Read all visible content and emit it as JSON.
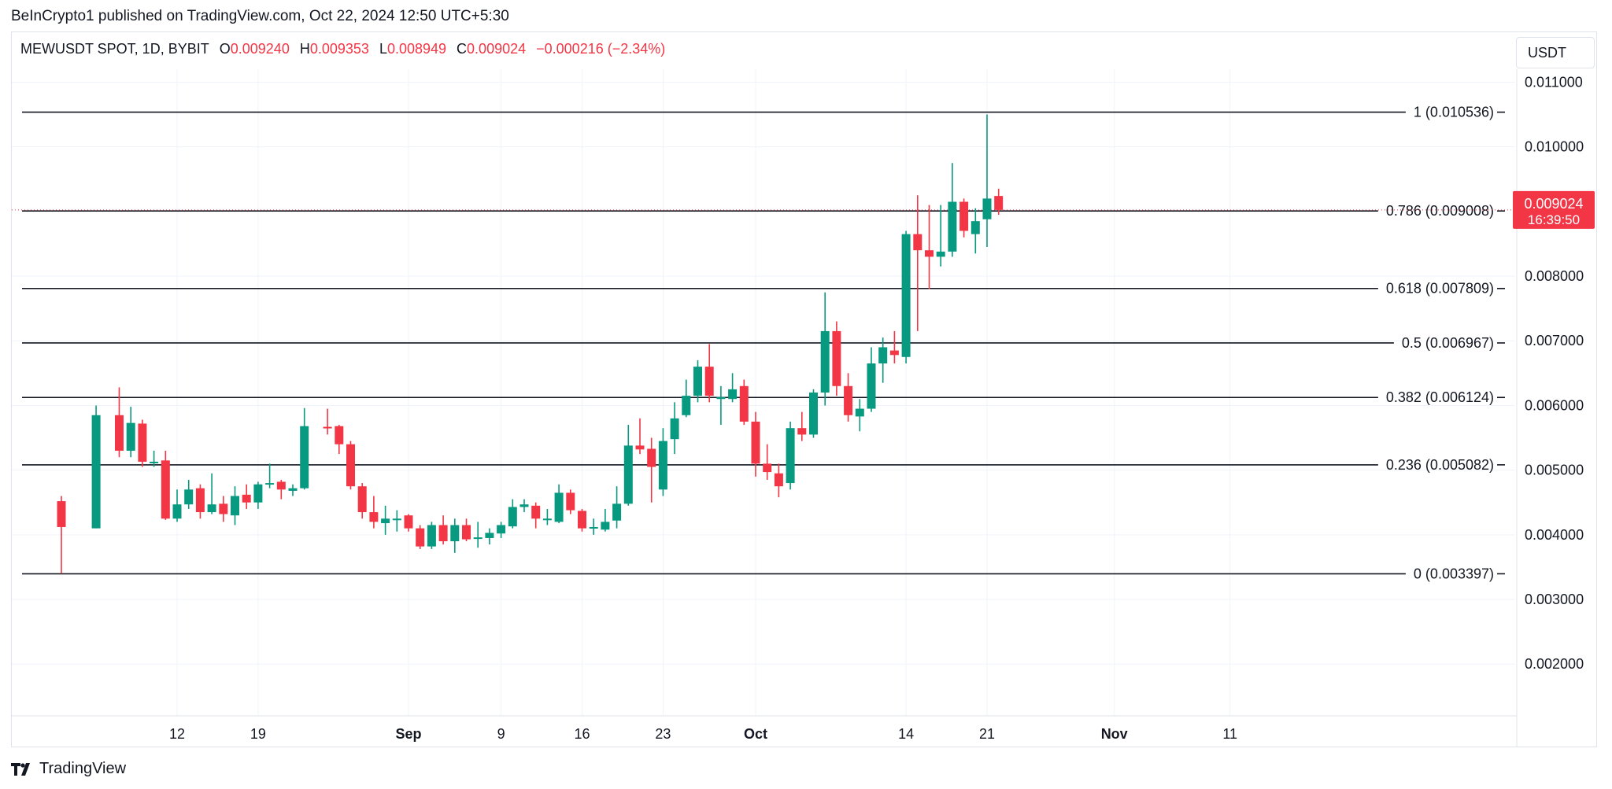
{
  "publisher": "BeInCrypto1 published on TradingView.com, Oct 22, 2024 12:50 UTC+5:30",
  "legend": {
    "symbol": "MEWUSDT SPOT, 1D, BYBIT",
    "o_label": "O",
    "o": "0.009240",
    "h_label": "H",
    "h": "0.009353",
    "l_label": "L",
    "l": "0.008949",
    "c_label": "C",
    "c": "0.009024",
    "change": "−0.000216 (−2.34%)"
  },
  "unit_button": "USDT",
  "brand": "TradingView",
  "colors": {
    "up": "#089981",
    "down": "#f23645",
    "grid": "#f0f3fa",
    "fib_line": "#131722"
  },
  "chart_data": {
    "type": "candlestick",
    "ylim": [
      0.0012,
      0.0112
    ],
    "y_ticks": [
      "0.002000",
      "0.003000",
      "0.004000",
      "0.005000",
      "0.006000",
      "0.007000",
      "0.008000",
      "0.010000",
      "0.011000"
    ],
    "x_ticks": [
      {
        "label": "12",
        "x": "2024-08-12"
      },
      {
        "label": "19",
        "x": "2024-08-19"
      },
      {
        "label": "Sep",
        "x": "2024-09-01"
      },
      {
        "label": "9",
        "x": "2024-09-09"
      },
      {
        "label": "16",
        "x": "2024-09-16"
      },
      {
        "label": "23",
        "x": "2024-09-23"
      },
      {
        "label": "Oct",
        "x": "2024-10-01"
      },
      {
        "label": "14",
        "x": "2024-10-14"
      },
      {
        "label": "21",
        "x": "2024-10-21"
      },
      {
        "label": "Nov",
        "x": "2024-11-01"
      },
      {
        "label": "11",
        "x": "2024-11-11"
      }
    ],
    "fib_levels": [
      {
        "label": "1 (0.010536)",
        "value": 0.010536
      },
      {
        "label": "0.786 (0.009008)",
        "value": 0.009008
      },
      {
        "label": "0.618 (0.007809)",
        "value": 0.007809
      },
      {
        "label": "0.5 (0.006967)",
        "value": 0.006967
      },
      {
        "label": "0.382 (0.006124)",
        "value": 0.006124
      },
      {
        "label": "0.236 (0.005082)",
        "value": 0.005082
      },
      {
        "label": "0 (0.003397)",
        "value": 0.003397
      }
    ],
    "current_price": {
      "value": 0.009024,
      "label": "0.009024",
      "countdown": "16:39:50"
    },
    "candles": [
      {
        "date": "2024-08-02",
        "o": 0.00452,
        "h": 0.0046,
        "l": 0.0034,
        "c": 0.00412
      },
      {
        "date": "2024-08-05",
        "o": 0.0041,
        "h": 0.006,
        "l": 0.0041,
        "c": 0.00585
      },
      {
        "date": "2024-08-07",
        "o": 0.00585,
        "h": 0.00628,
        "l": 0.0052,
        "c": 0.0053
      },
      {
        "date": "2024-08-08",
        "o": 0.0053,
        "h": 0.00598,
        "l": 0.0052,
        "c": 0.00573
      },
      {
        "date": "2024-08-09",
        "o": 0.00572,
        "h": 0.00578,
        "l": 0.00505,
        "c": 0.00513
      },
      {
        "date": "2024-08-10",
        "o": 0.00513,
        "h": 0.0053,
        "l": 0.00505,
        "c": 0.00513
      },
      {
        "date": "2024-08-11",
        "o": 0.00515,
        "h": 0.0053,
        "l": 0.00423,
        "c": 0.00425
      },
      {
        "date": "2024-08-12",
        "o": 0.00425,
        "h": 0.0047,
        "l": 0.0042,
        "c": 0.00447
      },
      {
        "date": "2024-08-13",
        "o": 0.00447,
        "h": 0.00485,
        "l": 0.0044,
        "c": 0.0047
      },
      {
        "date": "2024-08-14",
        "o": 0.00472,
        "h": 0.00478,
        "l": 0.00425,
        "c": 0.00435
      },
      {
        "date": "2024-08-15",
        "o": 0.00435,
        "h": 0.00495,
        "l": 0.00432,
        "c": 0.00447
      },
      {
        "date": "2024-08-16",
        "o": 0.00448,
        "h": 0.0046,
        "l": 0.0042,
        "c": 0.00432
      },
      {
        "date": "2024-08-17",
        "o": 0.0043,
        "h": 0.00475,
        "l": 0.00415,
        "c": 0.0046
      },
      {
        "date": "2024-08-18",
        "o": 0.00462,
        "h": 0.00478,
        "l": 0.0044,
        "c": 0.0045
      },
      {
        "date": "2024-08-19",
        "o": 0.0045,
        "h": 0.00482,
        "l": 0.0044,
        "c": 0.00478
      },
      {
        "date": "2024-08-20",
        "o": 0.00478,
        "h": 0.0051,
        "l": 0.00472,
        "c": 0.0048
      },
      {
        "date": "2024-08-21",
        "o": 0.00482,
        "h": 0.00485,
        "l": 0.00455,
        "c": 0.0047
      },
      {
        "date": "2024-08-22",
        "o": 0.00468,
        "h": 0.00478,
        "l": 0.0046,
        "c": 0.00472
      },
      {
        "date": "2024-08-23",
        "o": 0.00472,
        "h": 0.00596,
        "l": 0.0047,
        "c": 0.00568
      },
      {
        "date": "2024-08-25",
        "o": 0.00567,
        "h": 0.00595,
        "l": 0.00555,
        "c": 0.00565
      },
      {
        "date": "2024-08-26",
        "o": 0.00568,
        "h": 0.0057,
        "l": 0.00525,
        "c": 0.0054
      },
      {
        "date": "2024-08-27",
        "o": 0.0054,
        "h": 0.00545,
        "l": 0.0047,
        "c": 0.00475
      },
      {
        "date": "2024-08-28",
        "o": 0.00475,
        "h": 0.0048,
        "l": 0.00425,
        "c": 0.00435
      },
      {
        "date": "2024-08-29",
        "o": 0.00435,
        "h": 0.0046,
        "l": 0.0041,
        "c": 0.0042
      },
      {
        "date": "2024-08-30",
        "o": 0.00418,
        "h": 0.00445,
        "l": 0.004,
        "c": 0.00425
      },
      {
        "date": "2024-08-31",
        "o": 0.00423,
        "h": 0.00438,
        "l": 0.00405,
        "c": 0.00425
      },
      {
        "date": "2024-09-01",
        "o": 0.0043,
        "h": 0.00432,
        "l": 0.00405,
        "c": 0.0041
      },
      {
        "date": "2024-09-02",
        "o": 0.0041,
        "h": 0.00415,
        "l": 0.00378,
        "c": 0.00382
      },
      {
        "date": "2024-09-03",
        "o": 0.00382,
        "h": 0.0042,
        "l": 0.00378,
        "c": 0.00415
      },
      {
        "date": "2024-09-04",
        "o": 0.00415,
        "h": 0.0043,
        "l": 0.00385,
        "c": 0.0039
      },
      {
        "date": "2024-09-05",
        "o": 0.0039,
        "h": 0.00425,
        "l": 0.00372,
        "c": 0.00415
      },
      {
        "date": "2024-09-06",
        "o": 0.00415,
        "h": 0.00425,
        "l": 0.0039,
        "c": 0.00393
      },
      {
        "date": "2024-09-07",
        "o": 0.00396,
        "h": 0.0042,
        "l": 0.0038,
        "c": 0.00396
      },
      {
        "date": "2024-09-08",
        "o": 0.00395,
        "h": 0.0041,
        "l": 0.00385,
        "c": 0.00403
      },
      {
        "date": "2024-09-09",
        "o": 0.00402,
        "h": 0.0042,
        "l": 0.00395,
        "c": 0.00415
      },
      {
        "date": "2024-09-10",
        "o": 0.00413,
        "h": 0.00455,
        "l": 0.0041,
        "c": 0.00443
      },
      {
        "date": "2024-09-11",
        "o": 0.00443,
        "h": 0.00455,
        "l": 0.00435,
        "c": 0.00447
      },
      {
        "date": "2024-09-12",
        "o": 0.00445,
        "h": 0.0045,
        "l": 0.0041,
        "c": 0.00425
      },
      {
        "date": "2024-09-13",
        "o": 0.00425,
        "h": 0.0044,
        "l": 0.00415,
        "c": 0.00425
      },
      {
        "date": "2024-09-14",
        "o": 0.0042,
        "h": 0.00478,
        "l": 0.00418,
        "c": 0.00465
      },
      {
        "date": "2024-09-15",
        "o": 0.00465,
        "h": 0.0047,
        "l": 0.00432,
        "c": 0.00438
      },
      {
        "date": "2024-09-16",
        "o": 0.00437,
        "h": 0.0044,
        "l": 0.00405,
        "c": 0.0041
      },
      {
        "date": "2024-09-17",
        "o": 0.0041,
        "h": 0.00425,
        "l": 0.004,
        "c": 0.00412
      },
      {
        "date": "2024-09-18",
        "o": 0.00408,
        "h": 0.0044,
        "l": 0.00405,
        "c": 0.0042
      },
      {
        "date": "2024-09-19",
        "o": 0.00422,
        "h": 0.00475,
        "l": 0.0041,
        "c": 0.00448
      },
      {
        "date": "2024-09-20",
        "o": 0.00448,
        "h": 0.0057,
        "l": 0.00445,
        "c": 0.00538
      },
      {
        "date": "2024-09-21",
        "o": 0.00538,
        "h": 0.0058,
        "l": 0.00525,
        "c": 0.00532
      },
      {
        "date": "2024-09-22",
        "o": 0.00533,
        "h": 0.0055,
        "l": 0.0045,
        "c": 0.00505
      },
      {
        "date": "2024-09-23",
        "o": 0.0047,
        "h": 0.00565,
        "l": 0.0046,
        "c": 0.00545
      },
      {
        "date": "2024-09-24",
        "o": 0.00548,
        "h": 0.00605,
        "l": 0.00525,
        "c": 0.0058
      },
      {
        "date": "2024-09-25",
        "o": 0.00585,
        "h": 0.0064,
        "l": 0.00582,
        "c": 0.00615
      },
      {
        "date": "2024-09-26",
        "o": 0.00615,
        "h": 0.0067,
        "l": 0.00605,
        "c": 0.0066
      },
      {
        "date": "2024-09-27",
        "o": 0.0066,
        "h": 0.00695,
        "l": 0.00605,
        "c": 0.00615
      },
      {
        "date": "2024-09-28",
        "o": 0.0061,
        "h": 0.0063,
        "l": 0.0057,
        "c": 0.00613
      },
      {
        "date": "2024-09-29",
        "o": 0.0061,
        "h": 0.0065,
        "l": 0.00605,
        "c": 0.00625
      },
      {
        "date": "2024-09-30",
        "o": 0.0063,
        "h": 0.0064,
        "l": 0.0057,
        "c": 0.00575
      },
      {
        "date": "2024-10-01",
        "o": 0.00575,
        "h": 0.0059,
        "l": 0.0049,
        "c": 0.0051
      },
      {
        "date": "2024-10-02",
        "o": 0.0051,
        "h": 0.0054,
        "l": 0.00485,
        "c": 0.00497
      },
      {
        "date": "2024-10-03",
        "o": 0.00495,
        "h": 0.0051,
        "l": 0.00458,
        "c": 0.00475
      },
      {
        "date": "2024-10-04",
        "o": 0.0048,
        "h": 0.00575,
        "l": 0.0047,
        "c": 0.00565
      },
      {
        "date": "2024-10-05",
        "o": 0.00565,
        "h": 0.0059,
        "l": 0.00545,
        "c": 0.00555
      },
      {
        "date": "2024-10-06",
        "o": 0.00555,
        "h": 0.00625,
        "l": 0.0055,
        "c": 0.0062
      },
      {
        "date": "2024-10-07",
        "o": 0.0062,
        "h": 0.00775,
        "l": 0.006,
        "c": 0.00715
      },
      {
        "date": "2024-10-08",
        "o": 0.00715,
        "h": 0.0073,
        "l": 0.00615,
        "c": 0.0063
      },
      {
        "date": "2024-10-09",
        "o": 0.0063,
        "h": 0.0065,
        "l": 0.00575,
        "c": 0.00585
      },
      {
        "date": "2024-10-10",
        "o": 0.00583,
        "h": 0.0061,
        "l": 0.0056,
        "c": 0.00595
      },
      {
        "date": "2024-10-11",
        "o": 0.00595,
        "h": 0.0069,
        "l": 0.0059,
        "c": 0.00665
      },
      {
        "date": "2024-10-12",
        "o": 0.00665,
        "h": 0.00705,
        "l": 0.00635,
        "c": 0.0069
      },
      {
        "date": "2024-10-13",
        "o": 0.00685,
        "h": 0.00715,
        "l": 0.00665,
        "c": 0.00678
      },
      {
        "date": "2024-10-14",
        "o": 0.00675,
        "h": 0.0087,
        "l": 0.00665,
        "c": 0.00865
      },
      {
        "date": "2024-10-15",
        "o": 0.00865,
        "h": 0.00925,
        "l": 0.00715,
        "c": 0.0084
      },
      {
        "date": "2024-10-16",
        "o": 0.0084,
        "h": 0.0091,
        "l": 0.0078,
        "c": 0.0083
      },
      {
        "date": "2024-10-17",
        "o": 0.0083,
        "h": 0.0091,
        "l": 0.00815,
        "c": 0.00838
      },
      {
        "date": "2024-10-18",
        "o": 0.00838,
        "h": 0.00975,
        "l": 0.0083,
        "c": 0.00915
      },
      {
        "date": "2024-10-19",
        "o": 0.00915,
        "h": 0.0092,
        "l": 0.0086,
        "c": 0.0087
      },
      {
        "date": "2024-10-20",
        "o": 0.00865,
        "h": 0.00905,
        "l": 0.00835,
        "c": 0.00885
      },
      {
        "date": "2024-10-21",
        "o": 0.00888,
        "h": 0.0105,
        "l": 0.00845,
        "c": 0.0092
      },
      {
        "date": "2024-10-22",
        "o": 0.00924,
        "h": 0.009353,
        "l": 0.008949,
        "c": 0.009024
      }
    ]
  }
}
